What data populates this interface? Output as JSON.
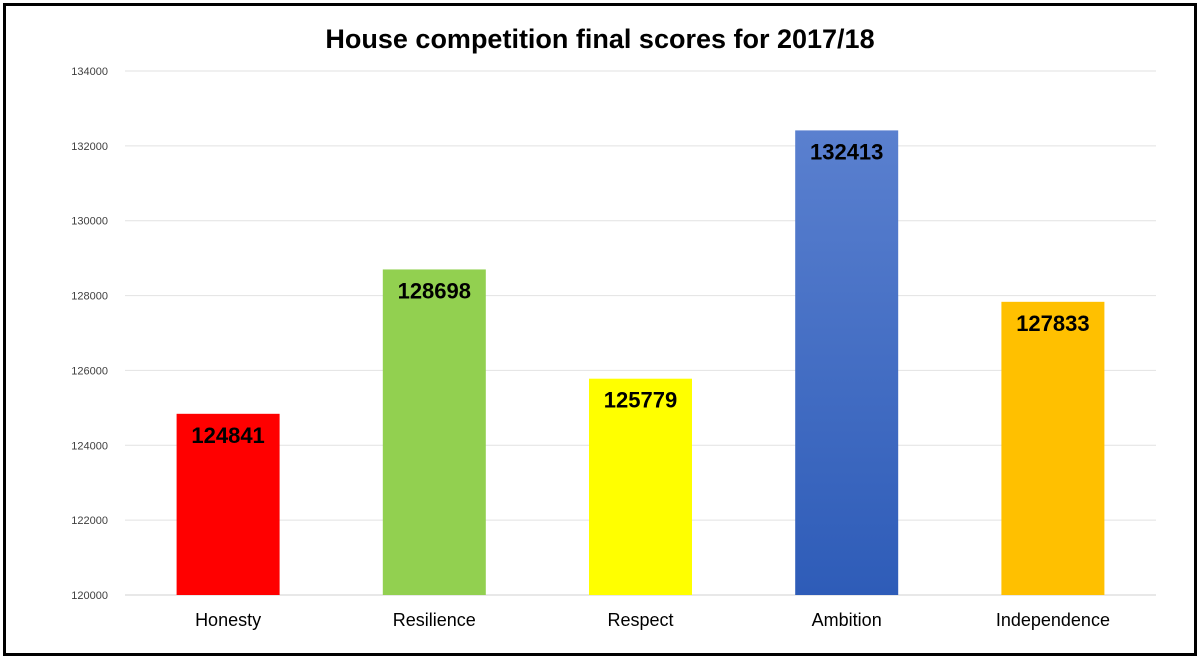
{
  "chart_data": {
    "type": "bar",
    "title": "House competition final scores for 2017/18",
    "xlabel": "",
    "ylabel": "",
    "categories": [
      "Honesty",
      "Resilience",
      "Respect",
      "Ambition",
      "Independence"
    ],
    "values": [
      124841,
      128698,
      125779,
      132413,
      127833
    ],
    "data_labels": [
      "124841",
      "128698",
      "125779",
      "132413",
      "127833"
    ],
    "colors": [
      "#ff0000",
      "#92d050",
      "#ffff00",
      "#4472c4",
      "#ffc000"
    ],
    "ylim": [
      120000,
      134000
    ],
    "yticks": [
      120000,
      122000,
      124000,
      126000,
      128000,
      130000,
      132000,
      134000
    ],
    "ytick_labels": [
      "120000",
      "122000",
      "124000",
      "126000",
      "128000",
      "130000",
      "132000",
      "134000"
    ],
    "grid": true,
    "legend": "none"
  }
}
